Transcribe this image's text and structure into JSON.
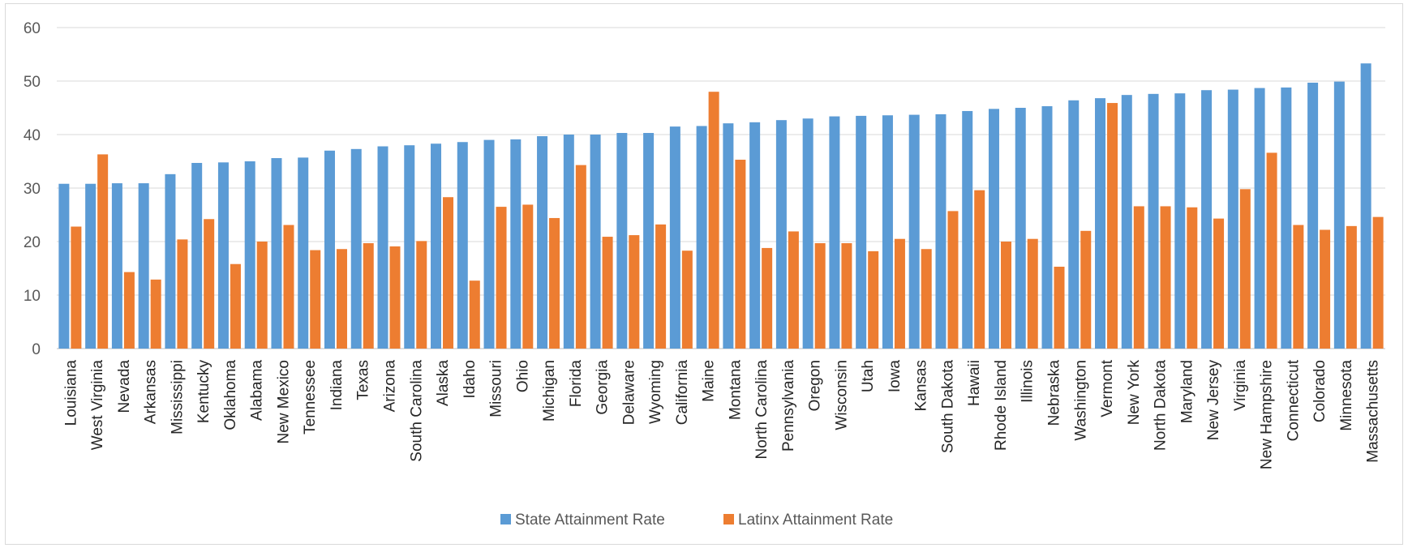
{
  "chart_data": {
    "type": "bar",
    "title": "",
    "xlabel": "",
    "ylabel": "",
    "ylim": [
      0,
      60
    ],
    "yticks": [
      0,
      10,
      20,
      30,
      40,
      50,
      60
    ],
    "grid": true,
    "legend_position": "bottom",
    "categories": [
      "Louisiana",
      "West Virginia",
      "Nevada",
      "Arkansas",
      "Mississippi",
      "Kentucky",
      "Oklahoma",
      "Alabama",
      "New Mexico",
      "Tennessee",
      "Indiana",
      "Texas",
      "Arizona",
      "South Carolina",
      "Alaska",
      "Idaho",
      "Missouri",
      "Ohio",
      "Michigan",
      "Florida",
      "Georgia",
      "Delaware",
      "Wyoming",
      "California",
      "Maine",
      "Montana",
      "North Carolina",
      "Pennsylvania",
      "Oregon",
      "Wisconsin",
      "Utah",
      "Iowa",
      "Kansas",
      "South Dakota",
      "Hawaii",
      "Rhode Island",
      "Illinois",
      "Nebraska",
      "Washington",
      "Vermont",
      "New York",
      "North Dakota",
      "Maryland",
      "New Jersey",
      "Virginia",
      "New Hampshire",
      "Connecticut",
      "Colorado",
      "Minnesota",
      "Massachusetts"
    ],
    "series": [
      {
        "name": "State Attainment Rate",
        "color": "#5b9bd5",
        "values": [
          30.8,
          30.8,
          30.9,
          30.9,
          32.6,
          34.7,
          34.8,
          35.0,
          35.6,
          35.7,
          37.0,
          37.3,
          37.8,
          38.0,
          38.3,
          38.6,
          39.0,
          39.1,
          39.7,
          40.0,
          40.0,
          40.3,
          40.3,
          41.5,
          41.6,
          42.1,
          42.3,
          42.7,
          43.0,
          43.4,
          43.5,
          43.6,
          43.7,
          43.8,
          44.4,
          44.8,
          45.0,
          45.3,
          46.4,
          46.8,
          47.4,
          47.6,
          47.7,
          48.3,
          48.4,
          48.7,
          48.8,
          49.7,
          49.9,
          53.3
        ]
      },
      {
        "name": "Latinx Attainment Rate",
        "color": "#ed7d31",
        "values": [
          22.8,
          36.3,
          14.3,
          12.9,
          20.4,
          24.2,
          15.8,
          20.0,
          23.1,
          18.4,
          18.6,
          19.7,
          19.1,
          20.1,
          28.3,
          12.7,
          26.5,
          26.9,
          24.4,
          34.3,
          20.9,
          21.2,
          23.2,
          18.3,
          48.0,
          35.3,
          18.8,
          21.9,
          19.7,
          19.7,
          18.2,
          20.5,
          18.6,
          25.7,
          29.6,
          20.0,
          20.5,
          15.3,
          22.0,
          45.9,
          26.6,
          26.6,
          26.4,
          24.3,
          29.8,
          36.6,
          23.1,
          22.2,
          22.9,
          24.6
        ]
      }
    ]
  }
}
